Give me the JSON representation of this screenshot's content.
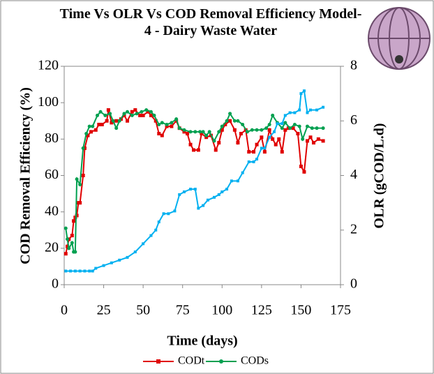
{
  "chart_data": {
    "type": "line",
    "title": "Time Vs OLR Vs COD Removal Efficiency Model-4 - Dairy Waste Water",
    "xlabel": "Time (days)",
    "ylabel": "COD Removal Efficiency (%)",
    "y2label": "OLR (gCOD/L.d)",
    "xlim": [
      0,
      175
    ],
    "xticks": [
      0,
      25,
      50,
      75,
      100,
      125,
      150,
      175
    ],
    "ylim": [
      0,
      120
    ],
    "yticks": [
      0,
      20,
      40,
      60,
      80,
      100,
      120
    ],
    "y2lim": [
      0,
      8
    ],
    "y2ticks": [
      0,
      2,
      4,
      6,
      8
    ],
    "series": [
      {
        "name": "CODt",
        "color": "#e00000",
        "marker": "square",
        "x": [
          1,
          2,
          3,
          5,
          6,
          7,
          8,
          9,
          10,
          12,
          13,
          15,
          17,
          20,
          22,
          24,
          27,
          28,
          30,
          33,
          36,
          38,
          40,
          43,
          45,
          48,
          50,
          53,
          55,
          58,
          60,
          62,
          65,
          68,
          71,
          73,
          76,
          78,
          80,
          82,
          85,
          87,
          90,
          93,
          96,
          98,
          100,
          102,
          105,
          108,
          110,
          112,
          115,
          117,
          120,
          122,
          125,
          127,
          130,
          132,
          134,
          136,
          138,
          140,
          142,
          145,
          148,
          150,
          152,
          154,
          156,
          158,
          161,
          164
        ],
        "values": [
          17,
          21,
          25,
          27,
          35,
          37,
          38,
          45,
          45,
          60,
          75,
          82,
          84,
          85,
          88,
          88,
          90,
          96,
          89,
          90,
          91,
          93,
          90,
          95,
          96,
          93,
          93,
          95,
          93,
          90,
          83,
          82,
          87,
          87,
          90,
          86,
          84,
          83,
          77,
          74,
          74,
          83,
          81,
          82,
          74,
          78,
          85,
          88,
          90,
          85,
          78,
          83,
          85,
          73,
          73,
          77,
          81,
          73,
          85,
          80,
          77,
          80,
          73,
          85,
          86,
          86,
          83,
          65,
          62,
          79,
          81,
          78,
          80,
          79
        ]
      },
      {
        "name": "CODs",
        "color": "#00a050",
        "marker": "circle",
        "x": [
          1,
          2,
          3,
          5,
          6,
          7,
          8,
          10,
          12,
          14,
          16,
          18,
          21,
          23,
          26,
          29,
          31,
          33,
          35,
          38,
          40,
          43,
          46,
          49,
          52,
          55,
          57,
          60,
          62,
          65,
          68,
          71,
          73,
          76,
          80,
          83,
          86,
          88,
          90,
          92,
          95,
          98,
          100,
          103,
          105,
          108,
          110,
          113,
          116,
          119,
          122,
          125,
          128,
          130,
          132,
          135,
          138,
          140,
          143,
          146,
          149,
          151,
          154,
          157,
          160,
          164
        ],
        "values": [
          31,
          25,
          20,
          23,
          18,
          18,
          58,
          55,
          75,
          83,
          87,
          87,
          93,
          95,
          93,
          94,
          90,
          86,
          90,
          94,
          95,
          93,
          94,
          95,
          96,
          95,
          93,
          88,
          89,
          88,
          89,
          91,
          86,
          85,
          84,
          84,
          84,
          84,
          82,
          84,
          79,
          84,
          87,
          90,
          94,
          90,
          90,
          88,
          84,
          85,
          85,
          85,
          86,
          88,
          93,
          89,
          86,
          89,
          86,
          88,
          87,
          80,
          87,
          86,
          86,
          86
        ]
      },
      {
        "color": "#00b0f0",
        "marker": "square",
        "axis": "y2",
        "x": [
          1,
          4,
          7,
          10,
          13,
          16,
          18,
          20,
          25,
          30,
          35,
          40,
          45,
          50,
          55,
          58,
          60,
          63,
          66,
          70,
          73,
          76,
          80,
          83,
          85,
          88,
          91,
          95,
          98,
          100,
          103,
          106,
          110,
          113,
          117,
          120,
          122,
          125,
          127,
          130,
          133,
          135,
          138,
          140,
          143,
          146,
          149,
          150,
          152,
          154,
          156,
          160,
          164
        ],
        "values": [
          0.5,
          0.5,
          0.5,
          0.5,
          0.5,
          0.5,
          0.5,
          0.6,
          0.7,
          0.8,
          0.9,
          1.0,
          1.2,
          1.5,
          1.8,
          2.0,
          2.3,
          2.6,
          2.6,
          2.7,
          3.3,
          3.4,
          3.5,
          3.5,
          2.8,
          2.9,
          3.1,
          3.2,
          3.3,
          3.4,
          3.5,
          3.8,
          3.8,
          4.1,
          4.5,
          4.5,
          4.6,
          5.0,
          5.0,
          5.4,
          5.6,
          5.9,
          5.9,
          6.2,
          6.3,
          6.3,
          6.4,
          7.0,
          7.1,
          6.3,
          6.4,
          6.4,
          6.5
        ]
      }
    ]
  }
}
